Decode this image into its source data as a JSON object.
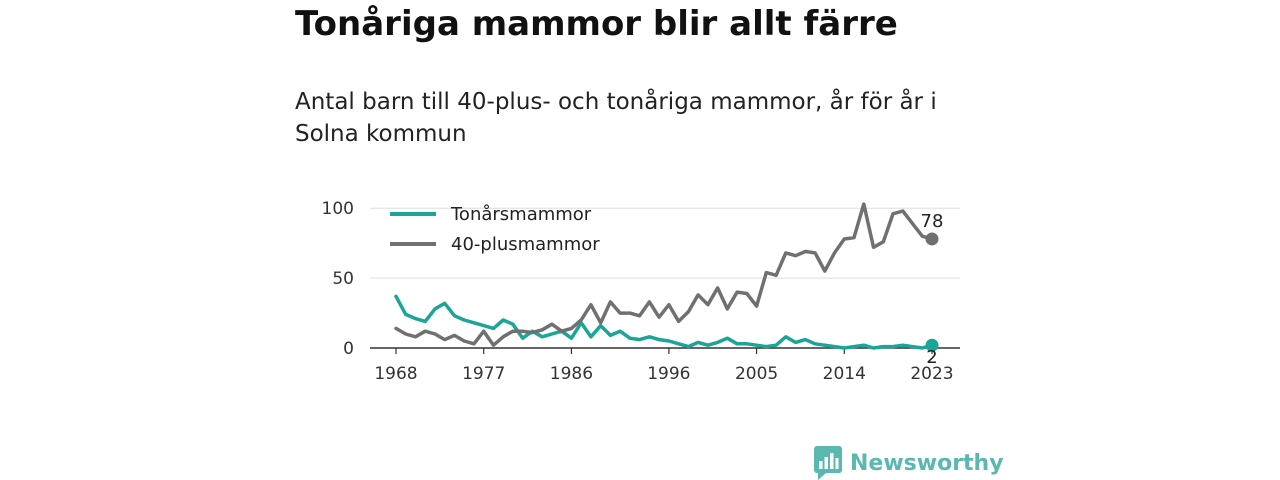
{
  "title": "Tonåriga mammor blir allt färre",
  "subtitle": "Antal barn till 40-plus- och tonåriga mammor, år för år i Solna kommun",
  "brand": {
    "name": "Newsworthy",
    "color": "#5bb8b0"
  },
  "chart_data": {
    "type": "line",
    "title": "",
    "xlabel": "",
    "ylabel": "",
    "x": [
      1968,
      1969,
      1970,
      1971,
      1972,
      1973,
      1974,
      1975,
      1976,
      1977,
      1978,
      1979,
      1980,
      1981,
      1982,
      1983,
      1984,
      1985,
      1986,
      1987,
      1988,
      1989,
      1990,
      1991,
      1992,
      1993,
      1994,
      1995,
      1996,
      1997,
      1998,
      1999,
      2000,
      2001,
      2002,
      2003,
      2004,
      2005,
      2006,
      2007,
      2008,
      2009,
      2010,
      2011,
      2012,
      2013,
      2014,
      2015,
      2016,
      2017,
      2018,
      2019,
      2020,
      2021,
      2022,
      2023
    ],
    "x_ticks": [
      "1968",
      "1977",
      "1986",
      "1996",
      "2005",
      "2014",
      "2023"
    ],
    "y_ticks": [
      "0",
      "50",
      "100"
    ],
    "ylim": [
      0,
      110
    ],
    "grid": true,
    "legend_position": "top-left",
    "series": [
      {
        "name": "Tonårsmammor",
        "color": "#1aa596",
        "values": [
          37,
          24,
          21,
          19,
          28,
          32,
          23,
          20,
          18,
          16,
          14,
          20,
          17,
          7,
          12,
          8,
          10,
          12,
          7,
          18,
          8,
          16,
          9,
          12,
          7,
          6,
          8,
          6,
          5,
          3,
          1,
          4,
          2,
          4,
          7,
          3,
          3,
          2,
          1,
          2,
          8,
          4,
          6,
          3,
          2,
          1,
          0,
          1,
          2,
          0,
          1,
          1,
          2,
          1,
          0,
          2
        ]
      },
      {
        "name": "40-plusmammor",
        "color": "#707073",
        "values": [
          14,
          10,
          8,
          12,
          10,
          6,
          9,
          5,
          3,
          12,
          2,
          8,
          12,
          12,
          11,
          13,
          17,
          12,
          14,
          20,
          31,
          18,
          33,
          25,
          25,
          23,
          33,
          22,
          31,
          19,
          26,
          38,
          31,
          43,
          28,
          40,
          39,
          30,
          54,
          52,
          68,
          66,
          69,
          68,
          55,
          68,
          78,
          79,
          103,
          72,
          76,
          96,
          98,
          89,
          80,
          78
        ]
      }
    ],
    "end_labels": [
      {
        "series": "40-plusmammor",
        "text": "78"
      },
      {
        "series": "Tonårsmammor",
        "text": "2"
      }
    ]
  }
}
